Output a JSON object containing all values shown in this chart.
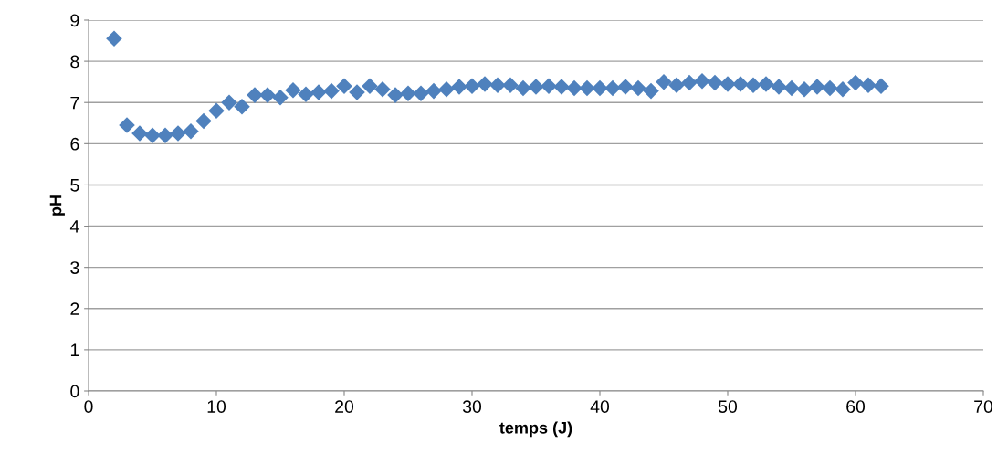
{
  "chart_data": {
    "type": "scatter",
    "xlabel": "temps (J)",
    "ylabel": "pH",
    "x": [
      2,
      3,
      4,
      5,
      6,
      7,
      8,
      9,
      10,
      11,
      12,
      13,
      14,
      15,
      16,
      17,
      18,
      19,
      20,
      21,
      22,
      23,
      24,
      25,
      26,
      27,
      28,
      29,
      30,
      31,
      32,
      33,
      34,
      35,
      36,
      37,
      38,
      39,
      40,
      41,
      42,
      43,
      44,
      45,
      46,
      47,
      48,
      49,
      50,
      51,
      52,
      53,
      54,
      55,
      56,
      57,
      58,
      59,
      60,
      61,
      62
    ],
    "series": [
      {
        "color": "#4f81bd",
        "values": [
          8.55,
          6.45,
          6.25,
          6.2,
          6.2,
          6.25,
          6.3,
          6.55,
          6.8,
          7.0,
          6.9,
          7.18,
          7.18,
          7.12,
          7.3,
          7.2,
          7.25,
          7.28,
          7.4,
          7.25,
          7.4,
          7.32,
          7.18,
          7.22,
          7.22,
          7.28,
          7.32,
          7.38,
          7.4,
          7.45,
          7.42,
          7.42,
          7.35,
          7.38,
          7.4,
          7.38,
          7.35,
          7.35,
          7.35,
          7.35,
          7.38,
          7.35,
          7.28,
          7.5,
          7.42,
          7.48,
          7.52,
          7.48,
          7.45,
          7.45,
          7.42,
          7.45,
          7.38,
          7.35,
          7.32,
          7.38,
          7.35,
          7.32,
          7.48,
          7.42,
          7.4
        ]
      }
    ],
    "xlim": [
      0,
      70
    ],
    "xticks": [
      0,
      10,
      20,
      30,
      40,
      50,
      60,
      70
    ],
    "ylim": [
      0,
      9
    ],
    "yticks": [
      0,
      1,
      2,
      3,
      4,
      5,
      6,
      7,
      8,
      9
    ],
    "grid": "y",
    "marker": "diamond"
  }
}
